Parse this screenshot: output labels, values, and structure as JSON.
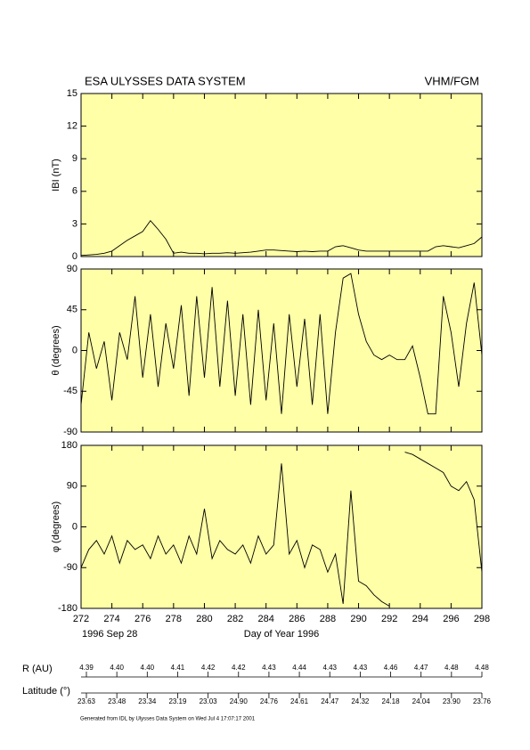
{
  "header": {
    "title": "ESA ULYSSES DATA SYSTEM",
    "instrument": "VHM/FGM"
  },
  "chart_data": [
    {
      "type": "line",
      "ylabel": "IBI (nT)",
      "x": [
        272,
        272.5,
        273,
        273.5,
        274,
        274.5,
        275,
        275.5,
        276,
        276.5,
        277,
        277.5,
        278,
        278.5,
        279,
        279.5,
        280,
        280.5,
        281,
        281.5,
        282,
        282.5,
        283,
        283.5,
        284,
        284.5,
        285,
        285.5,
        286,
        286.5,
        287,
        287.5,
        288,
        288.5,
        289,
        289.5,
        290,
        290.5,
        291,
        291.5,
        292,
        292.5,
        293,
        293.5,
        294,
        294.5,
        295,
        295.5,
        296,
        296.5,
        297,
        297.5,
        298
      ],
      "series": [
        {
          "color": "#000000",
          "values": [
            0.1,
            0.15,
            0.2,
            0.3,
            0.5,
            1.0,
            1.5,
            1.9,
            2.3,
            3.3,
            2.5,
            1.6,
            0.3,
            0.4,
            0.3,
            0.3,
            0.25,
            0.3,
            0.3,
            0.35,
            0.3,
            0.35,
            0.4,
            0.5,
            0.6,
            0.6,
            0.55,
            0.5,
            0.45,
            0.5,
            0.45,
            0.5,
            0.5,
            0.9,
            1.0,
            0.8,
            0.6,
            0.5,
            0.5,
            0.5,
            0.5,
            0.5,
            0.5,
            0.5,
            0.5,
            0.5,
            0.9,
            1.0,
            0.9,
            0.8,
            1.0,
            1.2,
            1.8
          ]
        }
      ],
      "xlim": [
        272,
        298
      ],
      "ylim": [
        0,
        15
      ],
      "yticks": [
        0,
        3,
        6,
        9,
        12,
        15
      ]
    },
    {
      "type": "line",
      "ylabel": "θ (degrees)",
      "x": [
        272,
        272.5,
        273,
        273.5,
        274,
        274.5,
        275,
        275.5,
        276,
        276.5,
        277,
        277.5,
        278,
        278.5,
        279,
        279.5,
        280,
        280.5,
        281,
        281.5,
        282,
        282.5,
        283,
        283.5,
        284,
        284.5,
        285,
        285.5,
        286,
        286.5,
        287,
        287.5,
        288,
        288.5,
        289,
        289.5,
        290,
        290.5,
        291,
        291.5,
        292,
        292.5,
        293,
        293.5,
        294,
        294.5,
        295,
        295.5,
        296,
        296.5,
        297,
        297.5,
        298
      ],
      "series": [
        {
          "color": "#000000",
          "values": [
            -60,
            20,
            -20,
            10,
            -55,
            20,
            -10,
            60,
            -30,
            40,
            -40,
            30,
            -20,
            50,
            -50,
            60,
            -30,
            70,
            -40,
            55,
            -50,
            40,
            -60,
            45,
            -55,
            30,
            -70,
            40,
            -40,
            35,
            -60,
            40,
            -70,
            20,
            80,
            85,
            40,
            10,
            -5,
            -10,
            -5,
            -10,
            -10,
            5,
            -30,
            -70,
            -70,
            60,
            20,
            -40,
            30,
            75,
            -5
          ]
        }
      ],
      "xlim": [
        272,
        298
      ],
      "ylim": [
        -90,
        90
      ],
      "yticks": [
        -90,
        -45,
        0,
        45,
        90
      ]
    },
    {
      "type": "line",
      "ylabel": "φ (degrees)",
      "xlabel": "Day of Year 1996",
      "start_date": "1996 Sep 28",
      "x": [
        272,
        272.5,
        273,
        273.5,
        274,
        274.5,
        275,
        275.5,
        276,
        276.5,
        277,
        277.5,
        278,
        278.5,
        279,
        279.5,
        280,
        280.5,
        281,
        281.5,
        282,
        282.5,
        283,
        283.5,
        284,
        284.5,
        285,
        285.5,
        286,
        286.5,
        287,
        287.5,
        288,
        288.5,
        289,
        289.5,
        290,
        290.5,
        291,
        291.5,
        292,
        292.5,
        293,
        293.5,
        294,
        294.5,
        295,
        295.5,
        296,
        296.5,
        297,
        297.5,
        298
      ],
      "series": [
        {
          "color": "#000000",
          "values": [
            -90,
            -50,
            -30,
            -60,
            -20,
            -80,
            -30,
            -50,
            -40,
            -70,
            -20,
            -60,
            -40,
            -80,
            -20,
            -60,
            40,
            -70,
            -30,
            -50,
            -60,
            -40,
            -80,
            -20,
            -60,
            -40,
            140,
            -60,
            -30,
            -90,
            -40,
            -50,
            -100,
            -60,
            -170,
            80,
            -120,
            -130,
            -150,
            -165,
            -175,
            null,
            165,
            160,
            150,
            140,
            130,
            120,
            90,
            80,
            100,
            60,
            -100
          ]
        }
      ],
      "xlim": [
        272,
        298
      ],
      "xticks": [
        272,
        274,
        276,
        278,
        280,
        282,
        284,
        286,
        288,
        290,
        292,
        294,
        296,
        298
      ],
      "ylim": [
        -180,
        180
      ],
      "yticks": [
        -180,
        -90,
        0,
        90,
        180
      ]
    }
  ],
  "r_au": {
    "label": "R (AU)",
    "values": [
      "4.39",
      "4.40",
      "4.40",
      "4.41",
      "4.42",
      "4.42",
      "4.43",
      "4.44",
      "4.43",
      "4.43",
      "4.46",
      "4.47",
      "4.48",
      "4.48"
    ]
  },
  "latitude": {
    "label": "Latitude (°)",
    "values": [
      "23.63",
      "23.48",
      "23.34",
      "23.19",
      "23.03",
      "24.90",
      "24.76",
      "24.61",
      "24.47",
      "24.32",
      "24.18",
      "24.04",
      "23.90",
      "23.76"
    ]
  },
  "footer": "Generated from IDL by Ulysses Data System on Wed Jul 4 17:07:17 2001"
}
